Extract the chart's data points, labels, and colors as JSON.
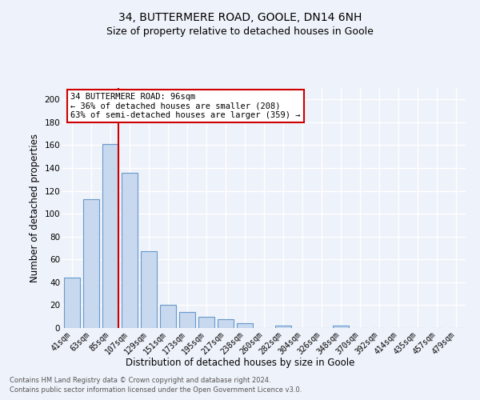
{
  "title1": "34, BUTTERMERE ROAD, GOOLE, DN14 6NH",
  "title2": "Size of property relative to detached houses in Goole",
  "xlabel": "Distribution of detached houses by size in Goole",
  "ylabel": "Number of detached properties",
  "categories": [
    "41sqm",
    "63sqm",
    "85sqm",
    "107sqm",
    "129sqm",
    "151sqm",
    "173sqm",
    "195sqm",
    "217sqm",
    "238sqm",
    "260sqm",
    "282sqm",
    "304sqm",
    "326sqm",
    "348sqm",
    "370sqm",
    "392sqm",
    "414sqm",
    "435sqm",
    "457sqm",
    "479sqm"
  ],
  "values": [
    44,
    113,
    161,
    136,
    67,
    20,
    14,
    10,
    8,
    4,
    0,
    2,
    0,
    0,
    2,
    0,
    0,
    0,
    0,
    0,
    0
  ],
  "bar_color": "#c8d8ee",
  "bar_edge_color": "#6699cc",
  "annotation_text": "34 BUTTERMERE ROAD: 96sqm\n← 36% of detached houses are smaller (208)\n63% of semi-detached houses are larger (359) →",
  "annotation_box_color": "#ffffff",
  "annotation_box_edge": "#cc0000",
  "ylim": [
    0,
    210
  ],
  "yticks": [
    0,
    20,
    40,
    60,
    80,
    100,
    120,
    140,
    160,
    180,
    200
  ],
  "footer1": "Contains HM Land Registry data © Crown copyright and database right 2024.",
  "footer2": "Contains public sector information licensed under the Open Government Licence v3.0.",
  "bg_color": "#eef2fa",
  "grid_color": "#ffffff",
  "title_fontsize": 10,
  "subtitle_fontsize": 9,
  "tick_fontsize": 7,
  "ylabel_fontsize": 8.5,
  "xlabel_fontsize": 8.5,
  "footer_fontsize": 6,
  "red_line_bar_index": 2,
  "bar_width": 0.85
}
